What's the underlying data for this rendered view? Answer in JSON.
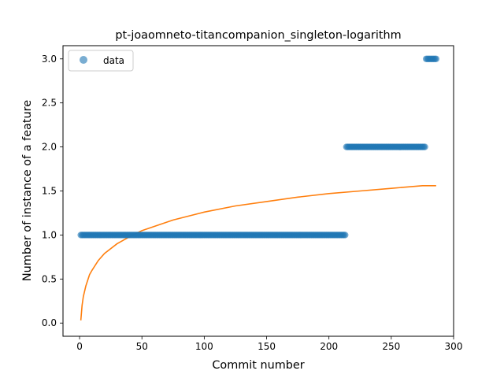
{
  "chart_data": {
    "type": "scatter",
    "title": "pt-joaomneto-titancompanion_singleton-logarithm",
    "xlabel": "Commit number",
    "ylabel": "Number of instance of a feature",
    "xlim": [
      -13.3,
      300
    ],
    "ylim": [
      -0.15,
      3.15
    ],
    "xticks": [
      0,
      50,
      100,
      150,
      200,
      250,
      300
    ],
    "yticks": [
      0.0,
      0.5,
      1.0,
      1.5,
      2.0,
      2.5,
      3.0
    ],
    "xtick_labels": [
      "0",
      "50",
      "100",
      "150",
      "200",
      "250",
      "300"
    ],
    "ytick_labels": [
      "0.0",
      "0.5",
      "1.0",
      "1.5",
      "2.0",
      "2.5",
      "3.0"
    ],
    "legend": {
      "entries": [
        "data"
      ],
      "location": "upper-left"
    },
    "colors": {
      "data": "#1f77b4",
      "fit": "#ff7f0e"
    },
    "series": [
      {
        "name": "data",
        "kind": "scatter",
        "segments": [
          {
            "x_start": 1,
            "x_end": 213,
            "y": 1
          },
          {
            "x_start": 214,
            "x_end": 277,
            "y": 2
          },
          {
            "x_start": 278,
            "x_end": 286,
            "y": 3
          }
        ]
      },
      {
        "kind": "line",
        "x": [
          1,
          2,
          3,
          5,
          8,
          10,
          15,
          20,
          30,
          40,
          50,
          75,
          100,
          125,
          150,
          175,
          200,
          225,
          250,
          275,
          286
        ],
        "y": [
          0.03,
          0.2,
          0.3,
          0.42,
          0.55,
          0.6,
          0.71,
          0.79,
          0.9,
          0.98,
          1.05,
          1.17,
          1.26,
          1.33,
          1.38,
          1.43,
          1.47,
          1.5,
          1.53,
          1.56,
          1.56
        ]
      }
    ]
  }
}
